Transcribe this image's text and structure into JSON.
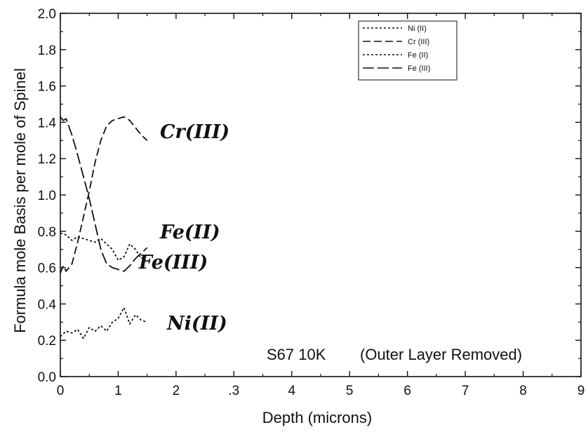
{
  "chart_data": {
    "type": "line",
    "title": "",
    "xlabel": "Depth (microns)",
    "ylabel": "Formula mole Basis per mole of Spinel",
    "xlim": [
      0,
      9
    ],
    "ylim": [
      0,
      2.0
    ],
    "x_ticks": [
      "0",
      "1",
      "2",
      ".3",
      "4",
      "5",
      "6",
      "7",
      "8",
      "9"
    ],
    "y_ticks": [
      "0.0",
      "0.2",
      "0.4",
      "0.6",
      "0.8",
      "1.0",
      "1.2",
      "1.4",
      "1.6",
      "1.8",
      "2.0"
    ],
    "grid": false,
    "legend_position": "top-right",
    "annotations": {
      "sample": "S67 10K",
      "note": "(Outer Layer Removed)",
      "hand_cr": "Cr(III)",
      "hand_fe2": "Fe(II)",
      "hand_fe3": "Fe(III)",
      "hand_ni": "Ni(II)"
    },
    "series": [
      {
        "name": "Ni (II)",
        "style": "dotted",
        "x": [
          0,
          0.1,
          0.2,
          0.3,
          0.4,
          0.5,
          0.6,
          0.7,
          0.8,
          0.9,
          1.0,
          1.1,
          1.2,
          1.3,
          1.4,
          1.5
        ],
        "y": [
          0.22,
          0.25,
          0.24,
          0.26,
          0.21,
          0.27,
          0.25,
          0.28,
          0.25,
          0.3,
          0.32,
          0.38,
          0.29,
          0.34,
          0.31,
          0.3
        ]
      },
      {
        "name": "Cr (III)",
        "style": "dashed",
        "x": [
          0,
          0.05,
          0.1,
          0.2,
          0.3,
          0.4,
          0.5,
          0.6,
          0.7,
          0.8,
          0.9,
          1.0,
          1.1,
          1.2,
          1.3,
          1.4,
          1.5
        ],
        "y": [
          0.57,
          0.61,
          0.58,
          0.62,
          0.74,
          0.88,
          1.02,
          1.18,
          1.3,
          1.38,
          1.41,
          1.42,
          1.43,
          1.41,
          1.37,
          1.33,
          1.3
        ]
      },
      {
        "name": "Fe (II)",
        "style": "dotted",
        "x": [
          0,
          0.1,
          0.2,
          0.3,
          0.4,
          0.5,
          0.6,
          0.7,
          0.8,
          0.9,
          1.0,
          1.1,
          1.2,
          1.3,
          1.4,
          1.5
        ],
        "y": [
          0.79,
          0.78,
          0.75,
          0.77,
          0.76,
          0.75,
          0.74,
          0.76,
          0.73,
          0.7,
          0.64,
          0.66,
          0.73,
          0.7,
          0.65,
          0.67
        ]
      },
      {
        "name": "Fe (III)",
        "style": "long-dash",
        "x": [
          0,
          0.05,
          0.1,
          0.2,
          0.3,
          0.4,
          0.5,
          0.6,
          0.7,
          0.8,
          0.9,
          1.0,
          1.1,
          1.2,
          1.3,
          1.4,
          1.5
        ],
        "y": [
          1.43,
          1.41,
          1.42,
          1.33,
          1.22,
          1.1,
          0.98,
          0.84,
          0.7,
          0.62,
          0.6,
          0.59,
          0.58,
          0.61,
          0.65,
          0.68,
          0.71
        ]
      }
    ]
  }
}
